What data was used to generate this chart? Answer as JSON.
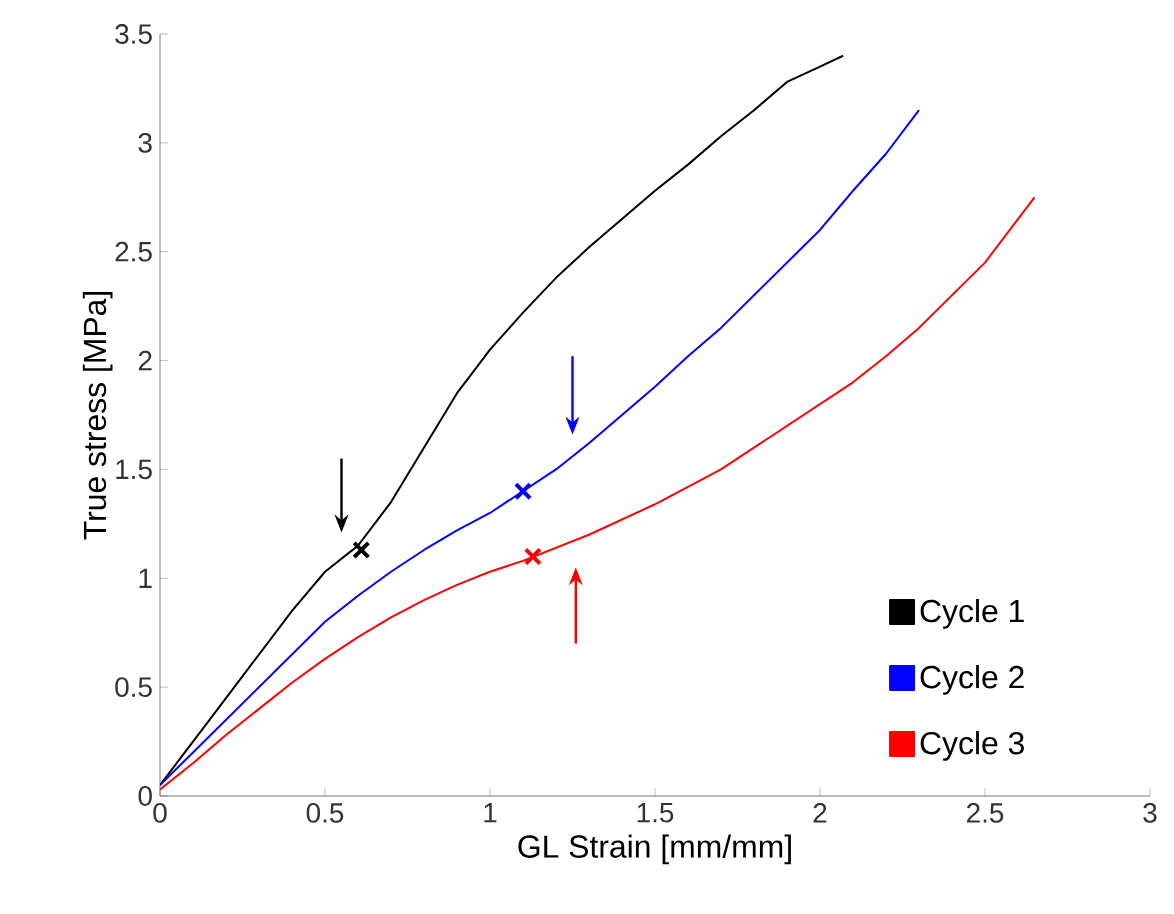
{
  "chart_data": {
    "type": "line",
    "xlabel": "GL Strain [mm/mm]",
    "ylabel": "True stress [MPa]",
    "xlim": [
      0,
      3
    ],
    "ylim": [
      0,
      3.5
    ],
    "xticks": [
      0,
      0.5,
      1,
      1.5,
      2,
      2.5,
      3
    ],
    "yticks": [
      0,
      0.5,
      1,
      1.5,
      2,
      2.5,
      3,
      3.5
    ],
    "grid": false,
    "legend": "bottom right",
    "marker": "none",
    "line_style": "solid",
    "series": [
      {
        "name": "Cycle 1",
        "color": "#000000",
        "x": [
          0,
          0.1,
          0.2,
          0.3,
          0.4,
          0.5,
          0.6,
          0.7,
          0.8,
          0.9,
          1.0,
          1.1,
          1.2,
          1.3,
          1.4,
          1.5,
          1.6,
          1.7,
          1.8,
          1.9,
          2.0,
          2.07
        ],
        "values": [
          0.05,
          0.25,
          0.45,
          0.65,
          0.85,
          1.03,
          1.15,
          1.35,
          1.6,
          1.85,
          2.05,
          2.22,
          2.38,
          2.52,
          2.65,
          2.78,
          2.9,
          3.03,
          3.15,
          3.28,
          3.35,
          3.4
        ]
      },
      {
        "name": "Cycle 2",
        "color": "#0000ff",
        "x": [
          0,
          0.1,
          0.2,
          0.3,
          0.4,
          0.5,
          0.6,
          0.7,
          0.8,
          0.9,
          1.0,
          1.1,
          1.2,
          1.3,
          1.4,
          1.5,
          1.6,
          1.7,
          1.8,
          1.9,
          2.0,
          2.1,
          2.2,
          2.3
        ],
        "values": [
          0.05,
          0.2,
          0.35,
          0.5,
          0.65,
          0.8,
          0.92,
          1.03,
          1.13,
          1.22,
          1.3,
          1.4,
          1.5,
          1.62,
          1.75,
          1.88,
          2.02,
          2.15,
          2.3,
          2.45,
          2.6,
          2.78,
          2.95,
          3.15
        ]
      },
      {
        "name": "Cycle 3",
        "color": "#ff0000",
        "x": [
          0,
          0.1,
          0.2,
          0.3,
          0.4,
          0.5,
          0.6,
          0.7,
          0.8,
          0.9,
          1.0,
          1.1,
          1.2,
          1.3,
          1.4,
          1.5,
          1.6,
          1.7,
          1.8,
          1.9,
          2.0,
          2.1,
          2.2,
          2.3,
          2.4,
          2.5,
          2.6,
          2.65
        ],
        "values": [
          0.03,
          0.15,
          0.28,
          0.4,
          0.52,
          0.63,
          0.73,
          0.82,
          0.9,
          0.97,
          1.03,
          1.08,
          1.14,
          1.2,
          1.27,
          1.34,
          1.42,
          1.5,
          1.6,
          1.7,
          1.8,
          1.9,
          2.02,
          2.15,
          2.3,
          2.45,
          2.65,
          2.75
        ]
      },
      {
        "type": "scatter",
        "marker": "cross",
        "color": "#000000",
        "x": [
          0.61
        ],
        "values": [
          1.13
        ]
      },
      {
        "type": "scatter",
        "marker": "cross",
        "color": "#0000ff",
        "x": [
          1.1
        ],
        "values": [
          1.4
        ]
      },
      {
        "type": "scatter",
        "marker": "cross",
        "color": "#ff0000",
        "x": [
          1.13
        ],
        "values": [
          1.1
        ]
      }
    ]
  }
}
